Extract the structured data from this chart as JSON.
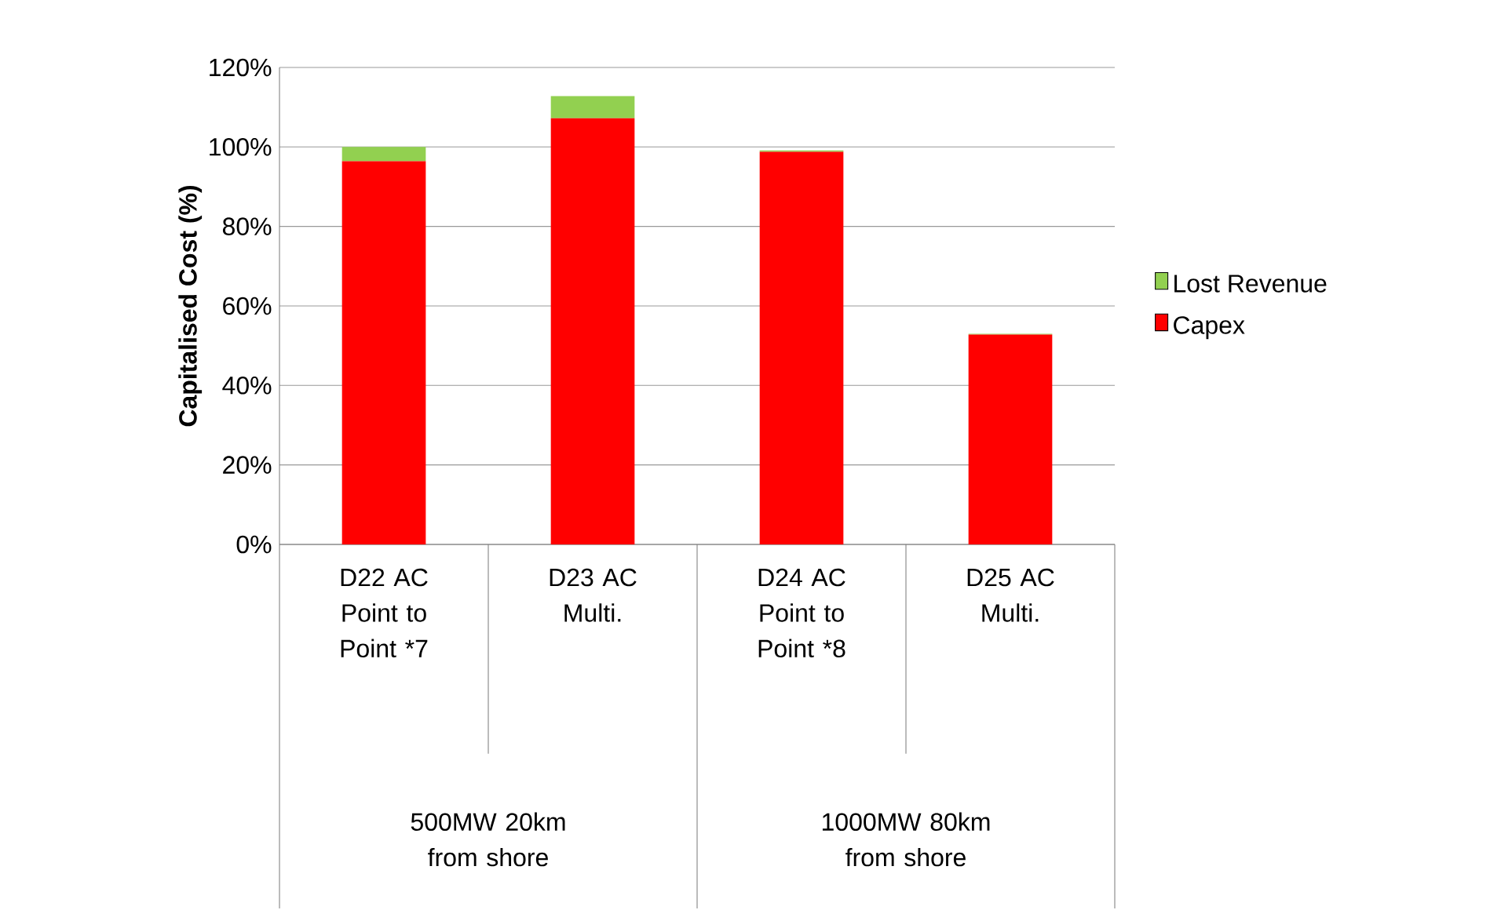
{
  "chart_data": {
    "type": "bar",
    "stacked": true,
    "ylabel": "Capitalised Cost (%)",
    "categories": [
      "D22 AC Point to Point *7",
      "D23 AC Multi.",
      "D24 AC Point to Point *8",
      "D25 AC Multi."
    ],
    "series": [
      {
        "name": "Capex",
        "color": "#ff0000",
        "values": [
          96.4,
          107.2,
          98.8,
          52.8
        ]
      },
      {
        "name": "Lost Revenue",
        "color": "#92d050",
        "values": [
          3.6,
          5.6,
          0.3,
          0.2
        ]
      }
    ],
    "ylim": [
      0,
      120
    ],
    "yticks": [
      {
        "value": 0,
        "label": "0%"
      },
      {
        "value": 20,
        "label": "20%"
      },
      {
        "value": 40,
        "label": "40%"
      },
      {
        "value": 60,
        "label": "60%"
      },
      {
        "value": 80,
        "label": "80%"
      },
      {
        "value": 100,
        "label": "100%"
      },
      {
        "value": 120,
        "label": "120%"
      }
    ],
    "grid": "y",
    "legend": "right",
    "annotations": [
      "500MW 20km from shore",
      "1000MW 80km from shore"
    ]
  }
}
